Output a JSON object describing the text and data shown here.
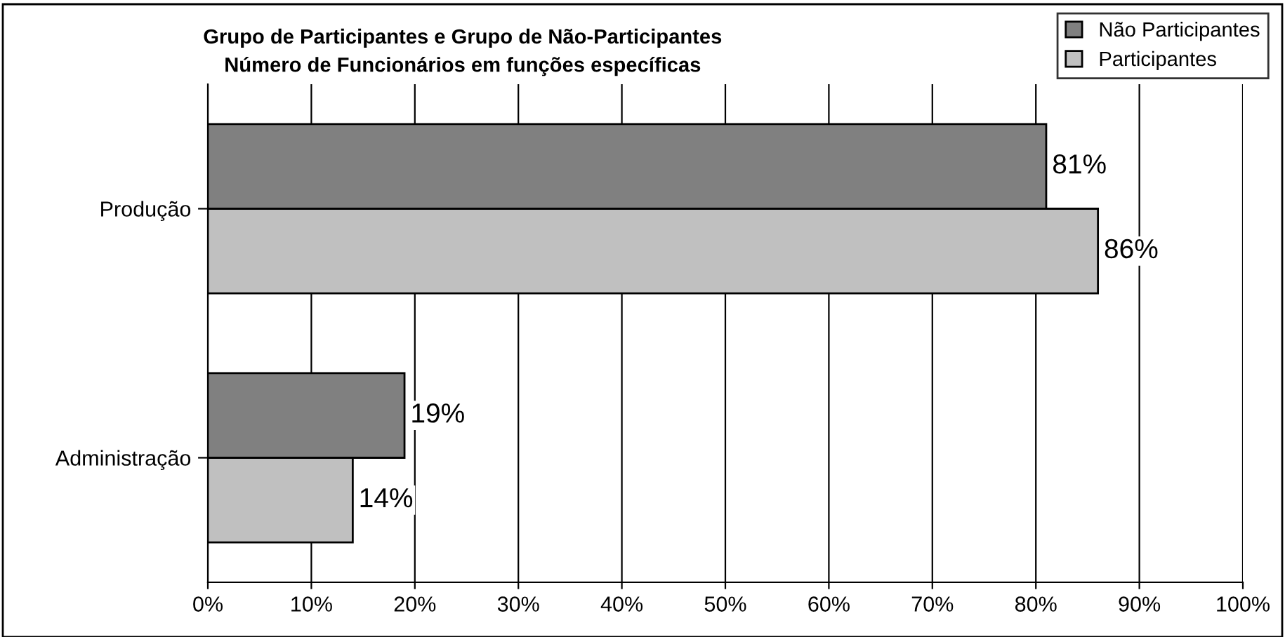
{
  "chart_data": {
    "type": "bar",
    "orientation": "horizontal",
    "title": "Grupo de Participantes e Grupo de Não-Participantes\nNúmero de Funcionários em funções específicas",
    "categories": [
      "Produção",
      "Administração"
    ],
    "series": [
      {
        "name": "Não Participantes",
        "color": "#808080",
        "values": [
          81,
          19
        ],
        "value_labels": [
          "81%",
          "19%"
        ]
      },
      {
        "name": "Participantes",
        "color": "#c0c0c0",
        "values": [
          86,
          14
        ],
        "value_labels": [
          "86%",
          "14%"
        ]
      }
    ],
    "xlim": [
      0,
      100
    ],
    "xticks": [
      {
        "value": 0,
        "label": "0%"
      },
      {
        "value": 10,
        "label": "10%"
      },
      {
        "value": 20,
        "label": "20%"
      },
      {
        "value": 30,
        "label": "30%"
      },
      {
        "value": 40,
        "label": "40%"
      },
      {
        "value": 50,
        "label": "50%"
      },
      {
        "value": 60,
        "label": "60%"
      },
      {
        "value": 70,
        "label": "70%"
      },
      {
        "value": 80,
        "label": "80%"
      },
      {
        "value": 90,
        "label": "90%"
      },
      {
        "value": 100,
        "label": "100%"
      }
    ],
    "grid": "x",
    "legend": "top right"
  }
}
